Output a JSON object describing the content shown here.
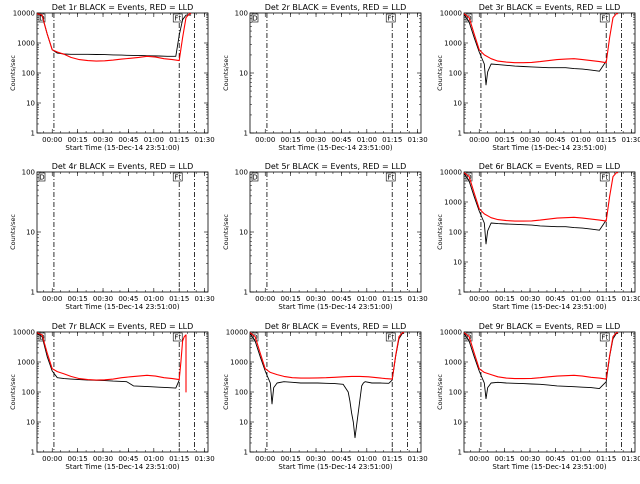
{
  "figure": {
    "xlabel": "Start Time (15-Dec-14 23:51:00)",
    "ylabel": "Counts/sec",
    "x_ticks": [
      "00:00",
      "00:15",
      "00:30",
      "00:45",
      "01:00",
      "01:15",
      "01:30"
    ],
    "y_ticks": [
      "1",
      "10",
      "100",
      "1000",
      "10000"
    ],
    "colors": {
      "events": "#000000",
      "lld": "#ff0000",
      "axes": "#000000",
      "background": "#ffffff"
    }
  },
  "chart_data": [
    {
      "type": "line",
      "title": "Det 1r BLACK = Events, RED = LLD",
      "markers": [
        "D",
        "Ft"
      ],
      "xlabel": "Start Time (15-Dec-14 23:51:00)",
      "ylabel": "Counts/sec",
      "x_unit": "minutes after 15-Dec-14 23:51:00",
      "xlim": [
        0,
        101
      ],
      "ylim": [
        1,
        10000
      ],
      "y_scale": "log",
      "vlines": [
        {
          "x": 10,
          "style": "dash-dot"
        },
        {
          "x": 84,
          "style": "dash-dot"
        },
        {
          "x": 93,
          "style": "dash-dot"
        }
      ],
      "series": [
        {
          "name": "Events",
          "color": "#000000",
          "x": [
            0,
            3,
            6,
            9,
            12,
            16,
            20,
            25,
            30,
            35,
            40,
            45,
            50,
            53,
            57,
            62,
            67,
            72,
            77,
            82,
            84,
            86,
            88,
            90,
            91
          ],
          "y": [
            9500,
            8000,
            2000,
            600,
            460,
            430,
            420,
            420,
            420,
            415,
            410,
            400,
            395,
            390,
            385,
            380,
            375,
            370,
            360,
            360,
            1800,
            6000,
            8500,
            8500,
            8500
          ]
        },
        {
          "name": "LLD",
          "color": "#ff0000",
          "x": [
            0,
            3,
            6,
            9,
            12,
            16,
            20,
            25,
            30,
            35,
            40,
            45,
            50,
            55,
            60,
            65,
            70,
            75,
            80,
            84,
            86,
            88,
            90,
            91
          ],
          "y": [
            9500,
            8500,
            2000,
            600,
            500,
            420,
            330,
            280,
            260,
            250,
            255,
            270,
            290,
            310,
            330,
            360,
            340,
            300,
            280,
            260,
            1500,
            7000,
            9500,
            9500
          ]
        }
      ]
    },
    {
      "type": "line",
      "title": "Det 2r BLACK = Events, RED = LLD",
      "markers": [
        "D",
        "Ft"
      ],
      "xlabel": "Start Time (15-Dec-14 23:51:00)",
      "ylabel": "Counts/sec",
      "x_unit": "minutes after 15-Dec-14 23:51:00",
      "xlim": [
        0,
        101
      ],
      "ylim": [
        1,
        100
      ],
      "y_scale": "log",
      "vlines": [
        {
          "x": 10,
          "style": "dash-dot"
        },
        {
          "x": 84,
          "style": "dash-dot"
        },
        {
          "x": 93,
          "style": "dash-dot"
        }
      ],
      "series": []
    },
    {
      "type": "line",
      "title": "Det 3r BLACK = Events, RED = LLD",
      "markers": [
        "D",
        "Ft"
      ],
      "xlabel": "Start Time (15-Dec-14 23:51:00)",
      "ylabel": "Counts/sec",
      "x_unit": "minutes after 15-Dec-14 23:51:00",
      "xlim": [
        0,
        101
      ],
      "ylim": [
        1,
        10000
      ],
      "y_scale": "log",
      "vlines": [
        {
          "x": 10,
          "style": "dash-dot"
        },
        {
          "x": 84,
          "style": "dash-dot"
        },
        {
          "x": 93,
          "style": "dash-dot"
        }
      ],
      "series": [
        {
          "name": "Events",
          "color": "#000000",
          "x": [
            0,
            3,
            6,
            9,
            12,
            13,
            14,
            16,
            20,
            25,
            30,
            35,
            40,
            45,
            50,
            55,
            60,
            65,
            70,
            75,
            80,
            84
          ],
          "y": [
            9000,
            5000,
            1500,
            500,
            200,
            40,
            110,
            200,
            190,
            180,
            170,
            165,
            160,
            155,
            150,
            150,
            150,
            140,
            135,
            125,
            115,
            250
          ]
        },
        {
          "name": "LLD",
          "color": "#ff0000",
          "x": [
            0,
            3,
            6,
            9,
            12,
            16,
            20,
            25,
            30,
            35,
            40,
            45,
            50,
            55,
            60,
            65,
            70,
            75,
            80,
            84,
            86,
            88,
            90,
            91
          ],
          "y": [
            9500,
            7000,
            2000,
            600,
            400,
            300,
            250,
            230,
            220,
            220,
            225,
            240,
            260,
            280,
            290,
            300,
            280,
            260,
            240,
            220,
            1500,
            7000,
            9500,
            9500
          ]
        }
      ]
    },
    {
      "type": "line",
      "title": "Det 4r BLACK = Events, RED = LLD",
      "markers": [
        "D",
        "Ft"
      ],
      "xlabel": "Start Time (15-Dec-14 23:51:00)",
      "ylabel": "Counts/sec",
      "x_unit": "minutes after 15-Dec-14 23:51:00",
      "xlim": [
        0,
        101
      ],
      "ylim": [
        1,
        100
      ],
      "y_scale": "log",
      "vlines": [
        {
          "x": 10,
          "style": "dash-dot"
        },
        {
          "x": 84,
          "style": "dash-dot"
        },
        {
          "x": 93,
          "style": "dash-dot"
        }
      ],
      "series": []
    },
    {
      "type": "line",
      "title": "Det 5r BLACK = Events, RED = LLD",
      "markers": [
        "D",
        "Ft"
      ],
      "xlabel": "Start Time (15-Dec-14 23:51:00)",
      "ylabel": "Counts/sec",
      "x_unit": "minutes after 15-Dec-14 23:51:00",
      "xlim": [
        0,
        101
      ],
      "ylim": [
        1,
        100
      ],
      "y_scale": "log",
      "vlines": [
        {
          "x": 10,
          "style": "dash-dot"
        },
        {
          "x": 84,
          "style": "dash-dot"
        },
        {
          "x": 93,
          "style": "dash-dot"
        }
      ],
      "series": []
    },
    {
      "type": "line",
      "title": "Det 6r BLACK = Events, RED = LLD",
      "markers": [
        "D",
        "Ft"
      ],
      "xlabel": "Start Time (15-Dec-14 23:51:00)",
      "ylabel": "Counts/sec",
      "x_unit": "minutes after 15-Dec-14 23:51:00",
      "xlim": [
        0,
        101
      ],
      "ylim": [
        1,
        10000
      ],
      "y_scale": "log",
      "vlines": [
        {
          "x": 10,
          "style": "dash-dot"
        },
        {
          "x": 84,
          "style": "dash-dot"
        },
        {
          "x": 93,
          "style": "dash-dot"
        }
      ],
      "series": [
        {
          "name": "Events",
          "color": "#000000",
          "x": [
            0,
            3,
            6,
            9,
            12,
            13,
            14,
            16,
            20,
            25,
            30,
            35,
            40,
            45,
            50,
            55,
            60,
            65,
            70,
            75,
            80,
            84
          ],
          "y": [
            9000,
            5000,
            1500,
            500,
            200,
            40,
            110,
            200,
            190,
            185,
            180,
            175,
            170,
            160,
            155,
            150,
            150,
            140,
            135,
            125,
            115,
            250
          ]
        },
        {
          "name": "LLD",
          "color": "#ff0000",
          "x": [
            0,
            3,
            6,
            9,
            12,
            16,
            20,
            25,
            30,
            35,
            40,
            45,
            50,
            55,
            60,
            65,
            70,
            75,
            80,
            84,
            86,
            88,
            90,
            91
          ],
          "y": [
            9500,
            7000,
            2000,
            600,
            400,
            300,
            260,
            240,
            230,
            230,
            235,
            250,
            270,
            290,
            300,
            310,
            290,
            270,
            250,
            230,
            1500,
            7000,
            9500,
            9500
          ]
        }
      ]
    },
    {
      "type": "line",
      "title": "Det 7r BLACK = Events, RED = LLD",
      "markers": [
        "D",
        "Ft"
      ],
      "xlabel": "Start Time (15-Dec-14 23:51:00)",
      "ylabel": "Counts/sec",
      "x_unit": "minutes after 15-Dec-14 23:51:00",
      "xlim": [
        0,
        101
      ],
      "ylim": [
        1,
        10000
      ],
      "y_scale": "log",
      "vlines": [
        {
          "x": 10,
          "style": "dash-dot"
        },
        {
          "x": 84,
          "style": "dash-dot"
        },
        {
          "x": 93,
          "style": "dash-dot"
        }
      ],
      "series": [
        {
          "name": "Events",
          "color": "#000000",
          "x": [
            0,
            3,
            6,
            9,
            12,
            16,
            20,
            25,
            30,
            35,
            40,
            45,
            50,
            53,
            57,
            62,
            67,
            72,
            77,
            82,
            84
          ],
          "y": [
            9000,
            7000,
            1500,
            500,
            300,
            280,
            270,
            260,
            250,
            245,
            240,
            230,
            225,
            220,
            160,
            155,
            150,
            145,
            140,
            135,
            250
          ]
        },
        {
          "name": "LLD",
          "color": "#ff0000",
          "x": [
            0,
            3,
            6,
            9,
            12,
            16,
            20,
            25,
            30,
            35,
            40,
            45,
            50,
            55,
            60,
            65,
            70,
            75,
            80,
            84,
            85,
            86,
            87,
            88,
            88,
            88
          ],
          "y": [
            9500,
            8000,
            2000,
            600,
            480,
            400,
            330,
            280,
            260,
            250,
            255,
            270,
            300,
            320,
            340,
            360,
            340,
            300,
            280,
            260,
            1000,
            5000,
            7000,
            8000,
            100,
            8000
          ]
        }
      ]
    },
    {
      "type": "line",
      "title": "Det 8r BLACK = Events, RED = LLD",
      "markers": [
        "D",
        "Ft"
      ],
      "xlabel": "Start Time (15-Dec-14 23:51:00)",
      "ylabel": "Counts/sec",
      "x_unit": "minutes after 15-Dec-14 23:51:00",
      "xlim": [
        0,
        101
      ],
      "ylim": [
        1,
        10000
      ],
      "y_scale": "log",
      "vlines": [
        {
          "x": 10,
          "style": "dash-dot"
        },
        {
          "x": 84,
          "style": "dash-dot"
        },
        {
          "x": 93,
          "style": "dash-dot"
        }
      ],
      "series": [
        {
          "name": "Events",
          "color": "#000000",
          "x": [
            0,
            3,
            6,
            9,
            12,
            13,
            14,
            16,
            20,
            25,
            30,
            35,
            40,
            45,
            50,
            55,
            58,
            59,
            60,
            61,
            62,
            66,
            67,
            68,
            72,
            77,
            82,
            84,
            86,
            88,
            90,
            91
          ],
          "y": [
            9000,
            5000,
            1500,
            500,
            200,
            40,
            140,
            200,
            220,
            210,
            200,
            200,
            200,
            195,
            190,
            180,
            100,
            50,
            20,
            10,
            3,
            160,
            200,
            220,
            200,
            200,
            195,
            250,
            1500,
            6000,
            9000,
            9000
          ]
        },
        {
          "name": "LLD",
          "color": "#ff0000",
          "x": [
            0,
            3,
            6,
            9,
            12,
            16,
            20,
            25,
            30,
            35,
            40,
            45,
            50,
            55,
            60,
            65,
            70,
            75,
            80,
            84,
            86,
            88,
            90,
            91
          ],
          "y": [
            9500,
            7000,
            2000,
            600,
            450,
            380,
            330,
            300,
            290,
            290,
            295,
            300,
            310,
            320,
            330,
            330,
            320,
            300,
            280,
            270,
            1600,
            7000,
            9500,
            9500
          ]
        }
      ]
    },
    {
      "type": "line",
      "title": "Det 9r BLACK = Events, RED = LLD",
      "markers": [
        "D",
        "Ft"
      ],
      "xlabel": "Start Time (15-Dec-14 23:51:00)",
      "ylabel": "Counts/sec",
      "x_unit": "minutes after 15-Dec-14 23:51:00",
      "xlim": [
        0,
        101
      ],
      "ylim": [
        1,
        10000
      ],
      "y_scale": "log",
      "vlines": [
        {
          "x": 10,
          "style": "dash-dot"
        },
        {
          "x": 84,
          "style": "dash-dot"
        },
        {
          "x": 93,
          "style": "dash-dot"
        }
      ],
      "series": [
        {
          "name": "Events",
          "color": "#000000",
          "x": [
            0,
            3,
            6,
            9,
            12,
            13,
            14,
            16,
            20,
            25,
            30,
            35,
            40,
            45,
            50,
            55,
            60,
            65,
            70,
            75,
            80,
            84,
            86,
            88,
            90,
            91
          ],
          "y": [
            9000,
            5000,
            1500,
            500,
            200,
            60,
            140,
            200,
            210,
            200,
            195,
            190,
            185,
            180,
            170,
            160,
            155,
            150,
            145,
            140,
            130,
            220,
            1500,
            6000,
            9000,
            9000
          ]
        },
        {
          "name": "LLD",
          "color": "#ff0000",
          "x": [
            0,
            3,
            6,
            9,
            12,
            16,
            20,
            25,
            30,
            35,
            40,
            45,
            50,
            55,
            60,
            65,
            70,
            75,
            80,
            84,
            86,
            88,
            90,
            91
          ],
          "y": [
            9500,
            7000,
            2000,
            600,
            450,
            380,
            320,
            290,
            280,
            280,
            285,
            300,
            320,
            340,
            350,
            360,
            340,
            310,
            290,
            270,
            1600,
            7000,
            9500,
            9500
          ]
        }
      ]
    }
  ]
}
